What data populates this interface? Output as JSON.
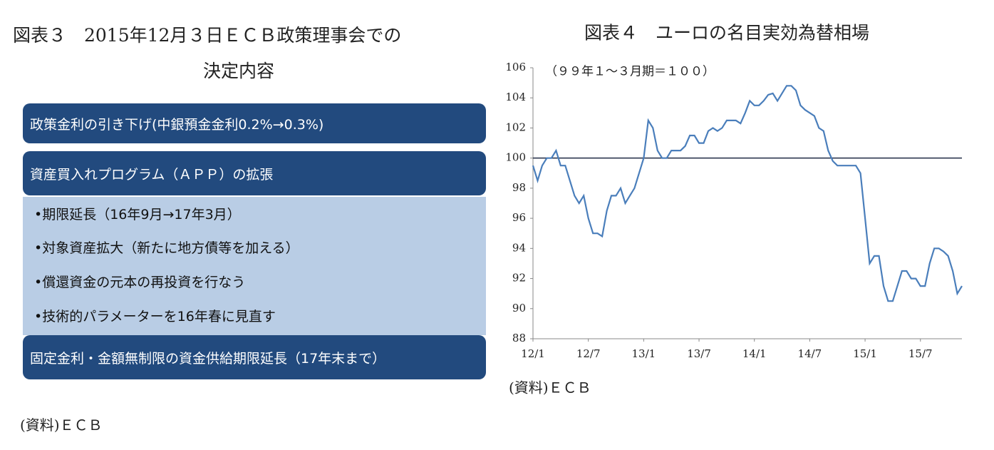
{
  "figure3": {
    "title_lines": [
      "図表３　2015年12月３日ＥＣＢ政策理事会での",
      "決定内容"
    ],
    "boxes": [
      {
        "text": "政策金利の引き下げ(中銀預金金利0.2%→0.3%)"
      },
      {
        "text": "資産買入れプログラム（ＡＰＰ）の拡張",
        "bullets": [
          "•期限延長（16年9月→17年3月）",
          "•対象資産拡大（新たに地方債等を加える）",
          "•償還資金の元本の再投資を行なう",
          "•技術的パラメーターを16年春に見直す"
        ]
      },
      {
        "text": "固定金利・金額無制限の資金供給期限延長（17年末まで）"
      }
    ],
    "source": "(資料)ＥＣＢ"
  },
  "chart_data": {
    "type": "line",
    "title": "図表４　ユーロの名目実効為替相場",
    "subtitle": "（９９年１～３月期＝１００）",
    "source": "(資料)ＥＣＢ",
    "categories": [
      "12/1",
      null,
      null,
      null,
      null,
      null,
      null,
      null,
      null,
      null,
      null,
      null,
      "12/7",
      null,
      null,
      null,
      null,
      null,
      null,
      null,
      null,
      null,
      null,
      null,
      "13/1",
      null,
      null,
      null,
      null,
      null,
      null,
      null,
      null,
      null,
      null,
      null,
      "13/7",
      null,
      null,
      null,
      null,
      null,
      null,
      null,
      null,
      null,
      null,
      null,
      "14/1",
      null,
      null,
      null,
      null,
      null,
      null,
      null,
      null,
      null,
      null,
      null,
      "14/7",
      null,
      null,
      null,
      null,
      null,
      null,
      null,
      null,
      null,
      null,
      null,
      "15/1",
      null,
      null,
      null,
      null,
      null,
      null,
      null,
      null,
      null,
      null,
      null,
      "15/7",
      null,
      null,
      null,
      null,
      null,
      null,
      null,
      null,
      null
    ],
    "series": [
      {
        "name": "ユーロ",
        "color": "#4a7ebb",
        "values": [
          99.5,
          98.5,
          99.5,
          100,
          100,
          100.5,
          99.5,
          99.5,
          98.5,
          97.5,
          97,
          97.5,
          96,
          95,
          95,
          94.8,
          96.5,
          97.5,
          97.5,
          98,
          97,
          97.5,
          98,
          99,
          100,
          102.5,
          102,
          100.5,
          100,
          100,
          100.5,
          100.5,
          100.5,
          100.8,
          101.5,
          101.5,
          101,
          101,
          101.8,
          102,
          101.8,
          102,
          102.5,
          102.5,
          102.5,
          102.3,
          103,
          103.8,
          103.5,
          103.5,
          103.8,
          104.2,
          104.3,
          103.8,
          104.3,
          104.8,
          104.8,
          104.5,
          103.5,
          103.2,
          103,
          102.8,
          102,
          101.8,
          100.5,
          99.8,
          99.5,
          99.5,
          99.5,
          99.5,
          99.5,
          99,
          96,
          93,
          93.5,
          93.5,
          91.5,
          90.5,
          90.5,
          91.5,
          92.5,
          92.5,
          92,
          92,
          91.5,
          91.5,
          93,
          94,
          94,
          93.8,
          93.5,
          92.5,
          91,
          91.5
        ]
      }
    ],
    "ylim": [
      88,
      106
    ],
    "yticks": [
      88,
      90,
      92,
      94,
      96,
      98,
      100,
      102,
      104,
      106
    ],
    "hline": 100,
    "hline_color": "#1f2a44"
  }
}
